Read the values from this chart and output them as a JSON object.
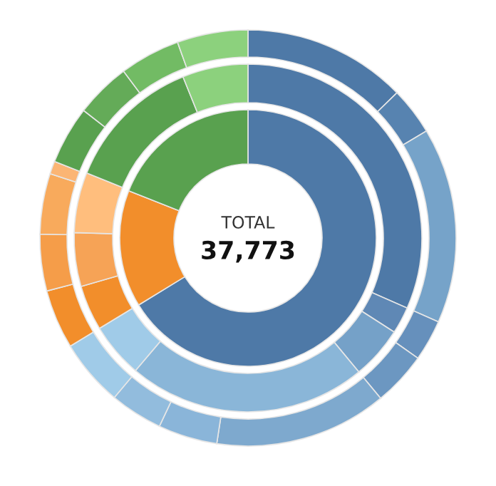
{
  "chart_data": {
    "type": "donut",
    "series": [
      {
        "values": [
          66.25,
          14.75,
          19.0
        ],
        "colors": [
          "#4e79a7",
          "#f28e2b",
          "#59a14f"
        ]
      },
      {
        "values": [
          31.6,
          2.5,
          4.9,
          22.2,
          5.1,
          4.2,
          5.0,
          5.6,
          12.8,
          6.1
        ],
        "colors": [
          "#4e79a7",
          "#5f88b5",
          "#75a1c8",
          "#8ab6d8",
          "#a0cbe8",
          "#f28e2b",
          "#f6a356",
          "#ffbe7d",
          "#59a14f",
          "#8cd17d"
        ]
      },
      {
        "values": [
          12.7,
          3.7,
          15.2,
          3.2,
          4.2,
          13.4,
          4.6,
          4.1,
          5.2,
          4.6,
          4.4,
          4.7,
          1.0,
          4.5,
          4.3,
          4.7,
          5.5
        ],
        "colors": [
          "#4e79a7",
          "#5783b0",
          "#76a3c9",
          "#6690bc",
          "#6c97c1",
          "#7ea9ce",
          "#8ab5d9",
          "#92bcdd",
          "#a0cbe8",
          "#f28e2b",
          "#f59d49",
          "#f8aa5c",
          "#fbb574",
          "#59a14f",
          "#64ab58",
          "#72bb64",
          "#8cd17d"
        ]
      }
    ],
    "annotations": [
      "TOTAL",
      "37,773"
    ]
  }
}
